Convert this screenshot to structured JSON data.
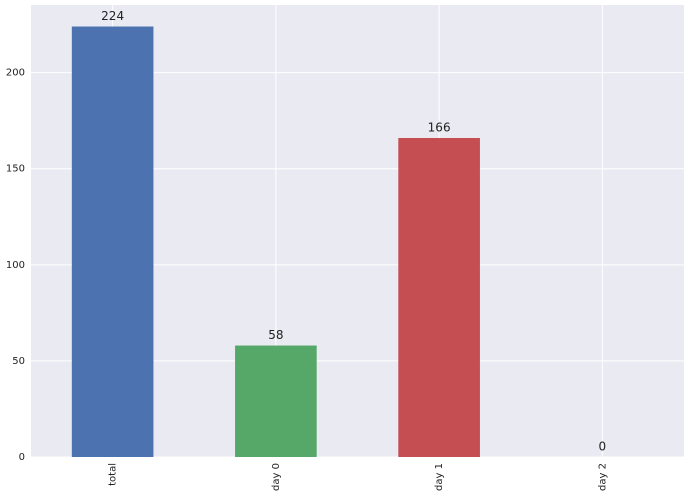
{
  "chart_data": {
    "type": "bar",
    "categories": [
      "total",
      "day 0",
      "day 1",
      "day 2"
    ],
    "values": [
      224,
      58,
      166,
      0
    ],
    "colors": [
      "#4c72b0",
      "#55a868",
      "#c44e52",
      "#8172b2"
    ],
    "ylim": [
      0,
      235.2
    ],
    "yticks": [
      0,
      50,
      100,
      150,
      200
    ],
    "grid": true
  }
}
